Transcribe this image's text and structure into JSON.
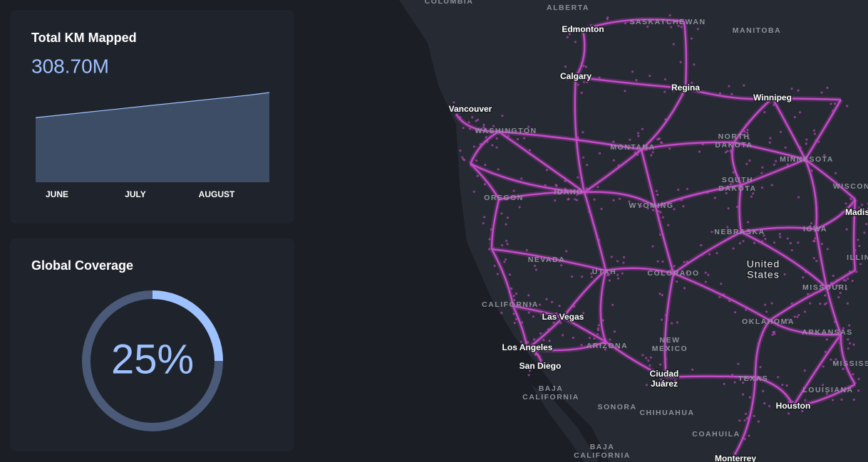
{
  "km_card": {
    "title": "Total KM Mapped",
    "value": "308.70M",
    "chart": {
      "type": "area",
      "values": [
        72,
        74.5,
        77,
        79.5,
        82,
        84.5,
        87,
        89.5,
        92,
        94.5,
        97,
        100
      ],
      "ylim": [
        0,
        100
      ],
      "color": "#3e4d66",
      "line_color": "#9ec1ff",
      "x_labels": [
        "JUNE",
        "JULY",
        "AUGUST"
      ]
    }
  },
  "coverage_card": {
    "title": "Global Coverage",
    "chart": {
      "type": "donut",
      "value": 25,
      "value_label": "25%",
      "max": 100,
      "color": "#9ec1ff",
      "track_color": "#4a5a78"
    }
  },
  "map": {
    "cities": [
      [
        "Edmonton"
      ],
      [
        "Calgary"
      ],
      [
        "Regina"
      ],
      [
        "Winnipeg"
      ],
      [
        "Vancouver"
      ],
      [
        "Las Vegas"
      ],
      [
        "Los Angeles"
      ],
      [
        "San Diego"
      ],
      [
        "Ciudad",
        "Juárez"
      ],
      [
        "Houston"
      ],
      [
        "Monterrey"
      ],
      [
        "Madis"
      ]
    ],
    "country": [
      "United",
      "States"
    ],
    "regions": [
      [
        "COLUMBIA"
      ],
      [
        "ALBERTA"
      ],
      [
        "SASKATCHEWAN"
      ],
      [
        "MANITOBA"
      ],
      [
        "WASHINGTON"
      ],
      [
        "NORTH",
        "DAKOTA"
      ],
      [
        "MONTANA"
      ],
      [
        "MINNESOTA"
      ],
      [
        "SOUTH",
        "DAKOTA"
      ],
      [
        "OREGON"
      ],
      [
        "IDAHO"
      ],
      [
        "WYOMING"
      ],
      [
        "WISCON"
      ],
      [
        "IOWA"
      ],
      [
        "NEBRASKA"
      ],
      [
        "NEVADA"
      ],
      [
        "UTAH"
      ],
      [
        "COLORADO"
      ],
      [
        "ILLIN"
      ],
      [
        "MISSOURI"
      ],
      [
        "CALIFORNIA"
      ],
      [
        "OKLAHOMA"
      ],
      [
        "ARKANSAS"
      ],
      [
        "ARIZONA"
      ],
      [
        "NEW",
        "MEXICO"
      ],
      [
        "MISSISS"
      ],
      [
        "TEXAS"
      ],
      [
        "LOUISIANA"
      ],
      [
        "BAJA",
        "CALIFORNIA"
      ],
      [
        "SONORA"
      ],
      [
        "CHIHUAHUA"
      ],
      [
        "COAHUILA"
      ],
      [
        "BAJA",
        "CALIFORNIA"
      ]
    ]
  }
}
